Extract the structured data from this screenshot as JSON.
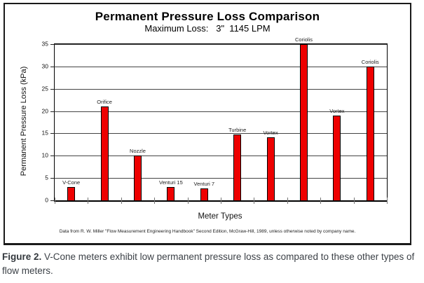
{
  "figure": {
    "caption_label": "Figure 2.",
    "caption_text": " V-Cone meters exhibit low permanent pressure loss as compared to these other types of flow meters."
  },
  "chart_data": {
    "type": "bar",
    "title": "Permanent Pressure Loss Comparison",
    "subtitle": "Maximum Loss:   3\"  1145 LPM",
    "xlabel": "Meter Types",
    "ylabel": "Permanent Pressure Loss (kPa)",
    "footnote": "Data from R. W. Miller \"Flow Measurement Engineering Handbook\" Second Edition, McGraw-Hill, 1989, unless otherwise noted by company name.",
    "categories": [
      "V-Cone",
      "Orifice",
      "Nozzle",
      "Venturi 15",
      "Venturi 7",
      "Turbine",
      "Vortex",
      "Coriolis",
      "Vortex",
      "Coriolis"
    ],
    "values": [
      3,
      21,
      10,
      3,
      2.7,
      14.7,
      14.2,
      35,
      19,
      30
    ],
    "ylim": [
      0,
      35
    ],
    "ytick_step": 5,
    "grid": true,
    "legend": "none",
    "bar_color": "#ee0000",
    "bar_border_color": "#000000",
    "gridline_color": "#444444"
  }
}
